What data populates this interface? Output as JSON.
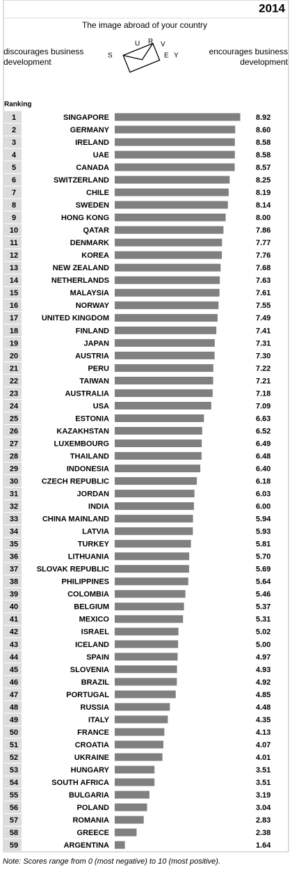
{
  "chart_data": {
    "type": "bar",
    "year": "2014",
    "title": "The image abroad of your country",
    "left_label": "discourages business development",
    "right_label": "encourages business development",
    "logo_letters": [
      "S",
      "U",
      "R",
      "V",
      "E",
      "Y"
    ],
    "rank_header": "Ranking",
    "ranks": [
      1,
      2,
      3,
      4,
      5,
      6,
      7,
      8,
      9,
      10,
      11,
      12,
      13,
      14,
      15,
      16,
      17,
      18,
      19,
      20,
      21,
      22,
      23,
      24,
      25,
      26,
      27,
      28,
      29,
      30,
      31,
      32,
      33,
      34,
      35,
      36,
      37,
      38,
      39,
      40,
      41,
      42,
      43,
      44,
      45,
      46,
      47,
      48,
      49,
      50,
      51,
      52,
      53,
      54,
      55,
      56,
      57,
      58,
      59
    ],
    "categories": [
      "SINGAPORE",
      "GERMANY",
      "IRELAND",
      "UAE",
      "CANADA",
      "SWITZERLAND",
      "CHILE",
      "SWEDEN",
      "HONG KONG",
      "QATAR",
      "DENMARK",
      "KOREA",
      "NEW ZEALAND",
      "NETHERLANDS",
      "MALAYSIA",
      "NORWAY",
      "UNITED KINGDOM",
      "FINLAND",
      "JAPAN",
      "AUSTRIA",
      "PERU",
      "TAIWAN",
      "AUSTRALIA",
      "USA",
      "ESTONIA",
      "KAZAKHSTAN",
      "LUXEMBOURG",
      "THAILAND",
      "INDONESIA",
      "CZECH REPUBLIC",
      "JORDAN",
      "INDIA",
      "CHINA MAINLAND",
      "LATVIA",
      "TURKEY",
      "LITHUANIA",
      "SLOVAK REPUBLIC",
      "PHILIPPINES",
      "COLOMBIA",
      "BELGIUM",
      "MEXICO",
      "ISRAEL",
      "ICELAND",
      "SPAIN",
      "SLOVENIA",
      "BRAZIL",
      "PORTUGAL",
      "RUSSIA",
      "ITALY",
      "FRANCE",
      "CROATIA",
      "UKRAINE",
      "HUNGARY",
      "SOUTH AFRICA",
      "BULGARIA",
      "POLAND",
      "ROMANIA",
      "GREECE",
      "ARGENTINA"
    ],
    "values": [
      8.92,
      8.6,
      8.58,
      8.58,
      8.57,
      8.25,
      8.19,
      8.14,
      8.0,
      7.86,
      7.77,
      7.76,
      7.68,
      7.63,
      7.61,
      7.55,
      7.49,
      7.41,
      7.31,
      7.3,
      7.22,
      7.21,
      7.18,
      7.09,
      6.63,
      6.52,
      6.49,
      6.48,
      6.4,
      6.18,
      6.03,
      6.0,
      5.94,
      5.93,
      5.81,
      5.7,
      5.69,
      5.64,
      5.46,
      5.37,
      5.31,
      5.02,
      5.0,
      4.97,
      4.93,
      4.92,
      4.85,
      4.48,
      4.35,
      4.13,
      4.07,
      4.01,
      3.51,
      3.51,
      3.19,
      3.04,
      2.83,
      2.38,
      1.64
    ],
    "value_labels": [
      "8.92",
      "8.60",
      "8.58",
      "8.58",
      "8.57",
      "8.25",
      "8.19",
      "8.14",
      "8.00",
      "7.86",
      "7.77",
      "7.76",
      "7.68",
      "7.63",
      "7.61",
      "7.55",
      "7.49",
      "7.41",
      "7.31",
      "7.30",
      "7.22",
      "7.21",
      "7.18",
      "7.09",
      "6.63",
      "6.52",
      "6.49",
      "6.48",
      "6.40",
      "6.18",
      "6.03",
      "6.00",
      "5.94",
      "5.93",
      "5.81",
      "5.70",
      "5.69",
      "5.64",
      "5.46",
      "5.37",
      "5.31",
      "5.02",
      "5.00",
      "4.97",
      "4.93",
      "4.92",
      "4.85",
      "4.48",
      "4.35",
      "4.13",
      "4.07",
      "4.01",
      "3.51",
      "3.51",
      "3.19",
      "3.04",
      "2.83",
      "2.38",
      "1.64"
    ],
    "color": "#808080",
    "xlim": [
      1,
      10
    ],
    "note": "Note: Scores range from 0 (most negative) to 10 (most positive)."
  }
}
